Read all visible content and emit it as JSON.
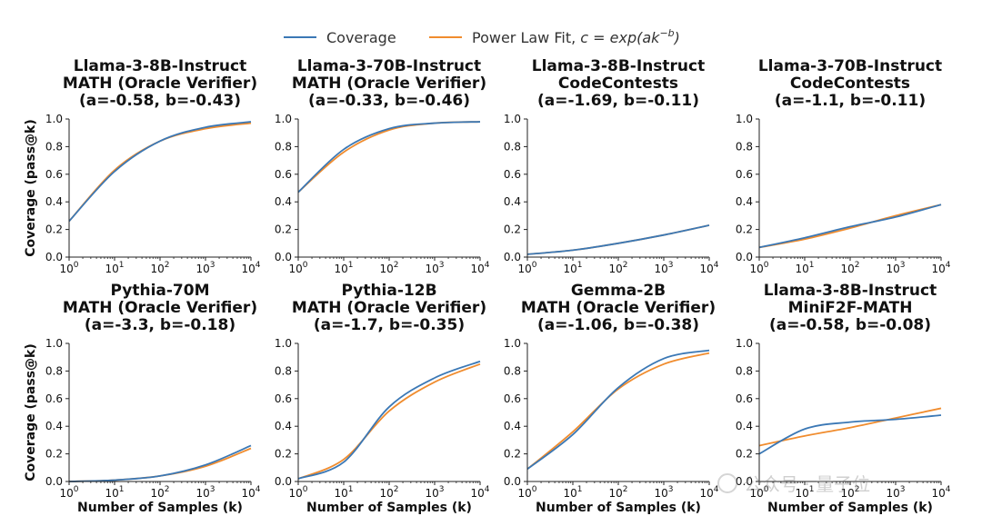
{
  "colors": {
    "coverage": "#3b78b5",
    "fit": "#f08c2e",
    "axis": "#222222"
  },
  "legend": {
    "coverage_label": "Coverage",
    "fit_label_prefix": "Power Law Fit, ",
    "fit_formula": "c = exp(ak",
    "fit_exponent": "−b",
    "fit_suffix": ")"
  },
  "axes": {
    "ylabel": "Coverage (pass@k)",
    "xlabel": "Number of Samples (k)",
    "yticks": [
      "0.0",
      "0.2",
      "0.4",
      "0.6",
      "0.8",
      "1.0"
    ],
    "xtick_base": "10",
    "xtick_exponents": [
      "0",
      "1",
      "2",
      "3",
      "4"
    ]
  },
  "chart_data": [
    {
      "type": "line",
      "title": [
        "Llama-3-8B-Instruct",
        "MATH (Oracle Verifier)",
        "(a=-0.58, b=-0.43)"
      ],
      "xscale": "log",
      "xlim": [
        1,
        10000
      ],
      "ylim": [
        0,
        1
      ],
      "x": [
        1,
        10,
        100,
        1000,
        10000
      ],
      "series": [
        {
          "name": "Coverage",
          "values": [
            0.26,
            0.62,
            0.84,
            0.94,
            0.98
          ]
        },
        {
          "name": "Power Law Fit",
          "values": [
            0.26,
            0.63,
            0.84,
            0.93,
            0.97
          ]
        }
      ]
    },
    {
      "type": "line",
      "title": [
        "Llama-3-70B-Instruct",
        "MATH (Oracle Verifier)",
        "(a=-0.33, b=-0.46)"
      ],
      "xscale": "log",
      "xlim": [
        1,
        10000
      ],
      "ylim": [
        0,
        1
      ],
      "x": [
        1,
        10,
        100,
        1000,
        10000
      ],
      "series": [
        {
          "name": "Coverage",
          "values": [
            0.47,
            0.78,
            0.93,
            0.97,
            0.98
          ]
        },
        {
          "name": "Power Law Fit",
          "values": [
            0.47,
            0.76,
            0.92,
            0.97,
            0.98
          ]
        }
      ]
    },
    {
      "type": "line",
      "title": [
        "Llama-3-8B-Instruct",
        "CodeContests",
        "(a=-1.69, b=-0.11)"
      ],
      "xscale": "log",
      "xlim": [
        1,
        10000
      ],
      "ylim": [
        0,
        1
      ],
      "x": [
        1,
        10,
        100,
        1000,
        10000
      ],
      "series": [
        {
          "name": "Coverage",
          "values": [
            0.02,
            0.05,
            0.1,
            0.16,
            0.23
          ]
        },
        {
          "name": "Power Law Fit",
          "values": [
            0.02,
            0.05,
            0.1,
            0.16,
            0.23
          ]
        }
      ]
    },
    {
      "type": "line",
      "title": [
        "Llama-3-70B-Instruct",
        "CodeContests",
        "(a=-1.1, b=-0.11)"
      ],
      "xscale": "log",
      "xlim": [
        1,
        10000
      ],
      "ylim": [
        0,
        1
      ],
      "x": [
        1,
        10,
        100,
        1000,
        10000
      ],
      "series": [
        {
          "name": "Coverage",
          "values": [
            0.07,
            0.14,
            0.22,
            0.29,
            0.38
          ]
        },
        {
          "name": "Power Law Fit",
          "values": [
            0.07,
            0.13,
            0.21,
            0.3,
            0.38
          ]
        }
      ]
    },
    {
      "type": "line",
      "title": [
        "Pythia-70M",
        "MATH (Oracle Verifier)",
        "(a=-3.3, b=-0.18)"
      ],
      "xscale": "log",
      "xlim": [
        1,
        10000
      ],
      "ylim": [
        0,
        1
      ],
      "x": [
        1,
        10,
        100,
        1000,
        10000
      ],
      "series": [
        {
          "name": "Coverage",
          "values": [
            0.0,
            0.01,
            0.04,
            0.12,
            0.26
          ]
        },
        {
          "name": "Power Law Fit",
          "values": [
            0.0,
            0.01,
            0.04,
            0.11,
            0.24
          ]
        }
      ]
    },
    {
      "type": "line",
      "title": [
        "Pythia-12B",
        "MATH (Oracle Verifier)",
        "(a=-1.7, b=-0.35)"
      ],
      "xscale": "log",
      "xlim": [
        1,
        10000
      ],
      "ylim": [
        0,
        1
      ],
      "x": [
        1,
        10,
        100,
        1000,
        10000
      ],
      "series": [
        {
          "name": "Coverage",
          "values": [
            0.02,
            0.14,
            0.54,
            0.75,
            0.87
          ]
        },
        {
          "name": "Power Law Fit",
          "values": [
            0.02,
            0.16,
            0.51,
            0.72,
            0.85
          ]
        }
      ]
    },
    {
      "type": "line",
      "title": [
        "Gemma-2B",
        "MATH (Oracle Verifier)",
        "(a=-1.06, b=-0.38)"
      ],
      "xscale": "log",
      "xlim": [
        1,
        10000
      ],
      "ylim": [
        0,
        1
      ],
      "x": [
        1,
        10,
        100,
        1000,
        10000
      ],
      "series": [
        {
          "name": "Coverage",
          "values": [
            0.09,
            0.34,
            0.68,
            0.89,
            0.95
          ]
        },
        {
          "name": "Power Law Fit",
          "values": [
            0.09,
            0.36,
            0.67,
            0.85,
            0.93
          ]
        }
      ]
    },
    {
      "type": "line",
      "title": [
        "Llama-3-8B-Instruct",
        "MiniF2F-MATH",
        "(a=-0.58, b=-0.08)"
      ],
      "xscale": "log",
      "xlim": [
        1,
        10000
      ],
      "ylim": [
        0,
        1
      ],
      "x": [
        1,
        10,
        100,
        1000,
        10000
      ],
      "series": [
        {
          "name": "Coverage",
          "values": [
            0.2,
            0.38,
            0.43,
            0.45,
            0.48
          ]
        },
        {
          "name": "Power Law Fit",
          "values": [
            0.26,
            0.33,
            0.39,
            0.46,
            0.53
          ]
        }
      ]
    }
  ],
  "watermark": {
    "text": "公众号 · 量子位"
  }
}
